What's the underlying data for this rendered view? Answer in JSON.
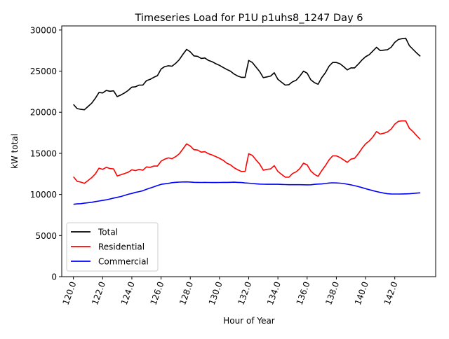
{
  "chart_data": {
    "type": "line",
    "title": "Timeseries Load for P1U p1uhs8_1247  Day 6",
    "xlabel": "Hour of Year",
    "ylabel": "kW total",
    "xlim": [
      119.2,
      144.8
    ],
    "ylim": [
      0,
      30500
    ],
    "x_ticks": [
      120,
      122,
      124,
      126,
      128,
      130,
      132,
      134,
      136,
      138,
      140,
      142
    ],
    "x_tick_labels": [
      "120.0",
      "122.0",
      "124.0",
      "126.0",
      "128.0",
      "130.0",
      "132.0",
      "134.0",
      "136.0",
      "138.0",
      "140.0",
      "142.0"
    ],
    "y_ticks": [
      0,
      5000,
      10000,
      15000,
      20000,
      25000,
      30000
    ],
    "y_tick_labels": [
      "0",
      "5000",
      "10000",
      "15000",
      "20000",
      "25000",
      "30000"
    ],
    "grid": false,
    "legend_position": "lower-left",
    "x": [
      120.0,
      120.25,
      120.5,
      120.75,
      121.0,
      121.25,
      121.5,
      121.75,
      122.0,
      122.25,
      122.5,
      122.75,
      123.0,
      123.25,
      123.5,
      123.75,
      124.0,
      124.25,
      124.5,
      124.75,
      125.0,
      125.25,
      125.5,
      125.75,
      126.0,
      126.25,
      126.5,
      126.75,
      127.0,
      127.25,
      127.5,
      127.75,
      128.0,
      128.25,
      128.5,
      128.75,
      129.0,
      129.25,
      129.5,
      129.75,
      130.0,
      130.25,
      130.5,
      130.75,
      131.0,
      131.25,
      131.5,
      131.75,
      132.0,
      132.25,
      132.5,
      132.75,
      133.0,
      133.25,
      133.5,
      133.75,
      134.0,
      134.25,
      134.5,
      134.75,
      135.0,
      135.25,
      135.5,
      135.75,
      136.0,
      136.25,
      136.5,
      136.75,
      137.0,
      137.25,
      137.5,
      137.75,
      138.0,
      138.25,
      138.5,
      138.75,
      139.0,
      139.25,
      139.5,
      139.75,
      140.0,
      140.25,
      140.5,
      140.75,
      141.0,
      141.25,
      141.5,
      141.75,
      142.0,
      142.25,
      142.5,
      142.75,
      143.0,
      143.25,
      143.5,
      143.75
    ],
    "series": [
      {
        "name": "Total",
        "color": "#000000",
        "values": [
          20950,
          20450,
          20350,
          20300,
          20700,
          21100,
          21700,
          22400,
          22350,
          22650,
          22550,
          22600,
          21900,
          22100,
          22350,
          22650,
          23050,
          23100,
          23300,
          23300,
          23850,
          24000,
          24250,
          24450,
          25250,
          25550,
          25650,
          25600,
          25950,
          26400,
          27050,
          27650,
          27350,
          26850,
          26800,
          26550,
          26600,
          26300,
          26150,
          25900,
          25700,
          25450,
          25200,
          25000,
          24650,
          24400,
          24250,
          24250,
          26300,
          26050,
          25500,
          24950,
          24200,
          24300,
          24400,
          24800,
          24000,
          23650,
          23300,
          23350,
          23700,
          23900,
          24400,
          25000,
          24750,
          23950,
          23600,
          23400,
          24200,
          24800,
          25600,
          26050,
          26050,
          25900,
          25550,
          25150,
          25400,
          25400,
          25850,
          26350,
          26750,
          27000,
          27450,
          27900,
          27500,
          27550,
          27600,
          27900,
          28500,
          28850,
          28950,
          29000,
          28100,
          27650,
          27200,
          26800
        ]
      },
      {
        "name": "Residential",
        "color": "#ff0000",
        "values": [
          12150,
          11600,
          11500,
          11350,
          11700,
          12050,
          12500,
          13200,
          13050,
          13300,
          13150,
          13100,
          12250,
          12400,
          12550,
          12700,
          13000,
          12900,
          13050,
          12950,
          13350,
          13300,
          13450,
          13450,
          14050,
          14300,
          14450,
          14350,
          14600,
          14950,
          15550,
          16150,
          15900,
          15450,
          15400,
          15150,
          15200,
          14950,
          14800,
          14600,
          14400,
          14150,
          13800,
          13600,
          13250,
          13000,
          12800,
          12800,
          14950,
          14750,
          14200,
          13700,
          12950,
          13050,
          13100,
          13500,
          12800,
          12450,
          12100,
          12100,
          12550,
          12750,
          13150,
          13800,
          13600,
          12850,
          12450,
          12200,
          12900,
          13500,
          14200,
          14700,
          14700,
          14500,
          14200,
          13900,
          14300,
          14400,
          14950,
          15600,
          16150,
          16500,
          17000,
          17650,
          17350,
          17450,
          17600,
          17950,
          18550,
          18900,
          18950,
          18950,
          18050,
          17650,
          17150,
          16700
        ]
      },
      {
        "name": "Commercial",
        "color": "#0000ff",
        "values": [
          8800,
          8850,
          8880,
          8940,
          9000,
          9050,
          9130,
          9200,
          9280,
          9350,
          9450,
          9560,
          9650,
          9750,
          9880,
          10020,
          10120,
          10250,
          10340,
          10450,
          10620,
          10780,
          10920,
          11080,
          11230,
          11300,
          11350,
          11430,
          11480,
          11500,
          11520,
          11530,
          11510,
          11480,
          11470,
          11460,
          11470,
          11460,
          11450,
          11450,
          11460,
          11470,
          11470,
          11480,
          11490,
          11470,
          11450,
          11400,
          11370,
          11330,
          11300,
          11260,
          11250,
          11240,
          11240,
          11240,
          11240,
          11220,
          11200,
          11190,
          11190,
          11190,
          11190,
          11180,
          11170,
          11180,
          11230,
          11260,
          11280,
          11330,
          11390,
          11420,
          11400,
          11370,
          11330,
          11250,
          11170,
          11070,
          10960,
          10840,
          10700,
          10580,
          10460,
          10350,
          10250,
          10160,
          10090,
          10060,
          10050,
          10050,
          10060,
          10070,
          10090,
          10120,
          10160,
          10200
        ]
      }
    ]
  }
}
